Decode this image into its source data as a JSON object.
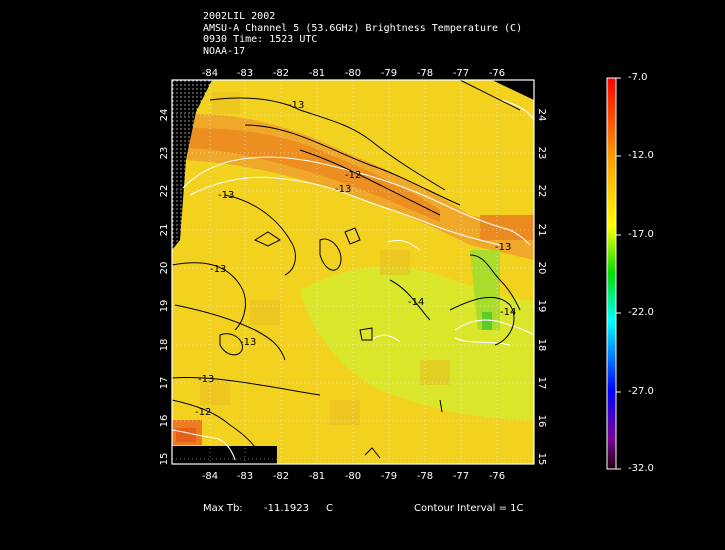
{
  "header": {
    "line1": "2002LIL 2002",
    "line2": "AMSU-A Channel 5 (53.6GHz) Brightness Temperature (C)",
    "line3": "0930 Time: 1523 UTC",
    "line4": "NOAA-17"
  },
  "map": {
    "lon_ticks": [
      "-84",
      "-83",
      "-82",
      "-81",
      "-80",
      "-79",
      "-78",
      "-77",
      "-76"
    ],
    "lat_ticks": [
      "15",
      "16",
      "17",
      "18",
      "19",
      "20",
      "21",
      "22",
      "23",
      "24"
    ],
    "contour_labels": [
      "-13",
      "-13",
      "-12",
      "-13",
      "-13",
      "-13",
      "-14",
      "-14",
      "-13",
      "-12",
      "-13"
    ],
    "lon_range": [
      -85,
      -75
    ],
    "lat_range": [
      15,
      25
    ]
  },
  "colorbar": {
    "labels": [
      "-7.0",
      "-12.0",
      "-17.0",
      "-22.0",
      "-27.0",
      "-32.0"
    ],
    "colors": [
      "#ff0000",
      "#ff8800",
      "#ffff00",
      "#00dd00",
      "#00ffff",
      "#0000ff",
      "#6600aa",
      "#220022"
    ]
  },
  "footer": {
    "max_label": "Max Tb:",
    "max_value": "-11.1923",
    "max_unit": "C",
    "contour_interval": "Contour Interval = 1C"
  }
}
